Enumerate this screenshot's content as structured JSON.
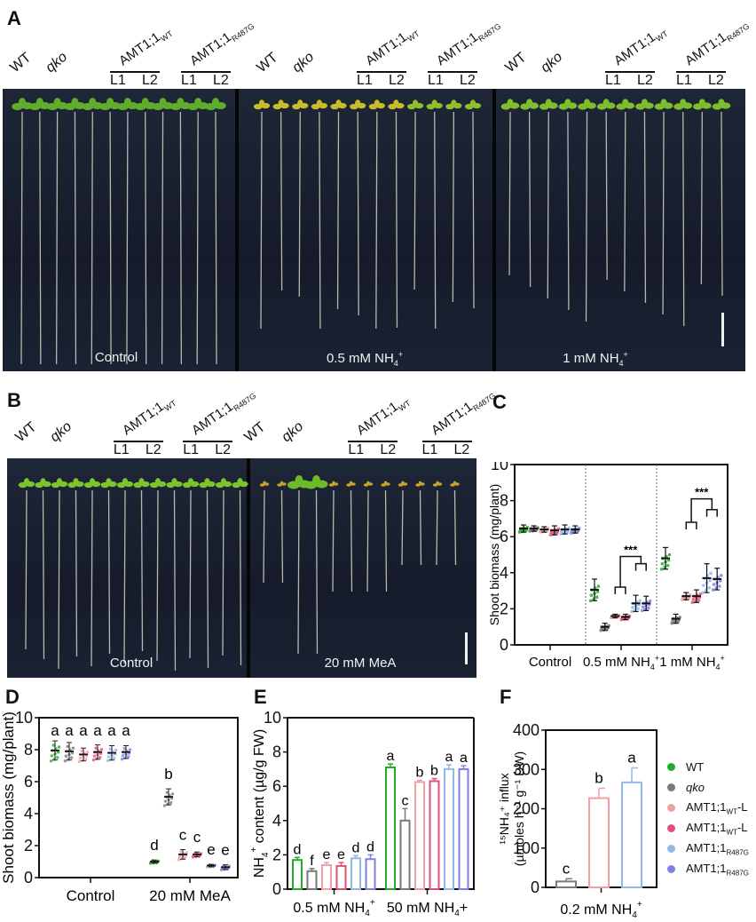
{
  "figure": {
    "panels": {
      "A": {
        "letter": "A",
        "conditions": [
          "Control",
          "0.5 mM NH",
          "1 mM NH"
        ],
        "nh4_sub": "4",
        "nh4_sup": "+"
      },
      "B": {
        "letter": "B",
        "conditions": [
          "Control",
          "20 mM MeA"
        ]
      },
      "C": {
        "letter": "C"
      },
      "D": {
        "letter": "D"
      },
      "E": {
        "letter": "E"
      },
      "F": {
        "letter": "F"
      }
    },
    "genotype_labels": {
      "wt": "WT",
      "qko": "qko",
      "amt_base": "AMT1;1",
      "amt_wt_sub": "WT",
      "amt_mut_sub": "R487G",
      "line1": "L1",
      "line2": "L2"
    },
    "colors": {
      "WT": "#1fae2b",
      "qko": "#7a7a7a",
      "AMT_WT_L1": "#f0a0a0",
      "AMT_WT_L2": "#e0507a",
      "AMT_R487G_L1": "#90b8ec",
      "AMT_R487G_L2": "#8080e0"
    },
    "legend": [
      {
        "label": "WT",
        "sub": "",
        "suffix": "",
        "italic": false,
        "color_key": "WT"
      },
      {
        "label": "qko",
        "sub": "",
        "suffix": "",
        "italic": true,
        "color_key": "qko"
      },
      {
        "label": "AMT1;1",
        "sub": "WT",
        "suffix": "-L",
        "italic": false,
        "color_key": "AMT_WT_L1"
      },
      {
        "label": "AMT1;1",
        "sub": "WT",
        "suffix": "-L",
        "italic": false,
        "color_key": "AMT_WT_L2"
      },
      {
        "label": "AMT1;1",
        "sub": "R487G",
        "suffix": "",
        "italic": false,
        "color_key": "AMT_R487G_L1"
      },
      {
        "label": "AMT1;1",
        "sub": "R487G",
        "suffix": "",
        "italic": false,
        "color_key": "AMT_R487G_L2"
      }
    ]
  },
  "chart_data": [
    {
      "id": "C",
      "type": "scatter",
      "title": "",
      "ylabel": "Shoot biomass (mg/plant)",
      "xlabel": "",
      "ylim": [
        0,
        10
      ],
      "yticks": [
        0,
        2,
        4,
        6,
        8,
        10
      ],
      "groups": [
        "Control",
        "0.5 mM NH4+",
        "1 mM NH4+"
      ],
      "series_order": [
        "WT",
        "qko",
        "AMT_WT_L1",
        "AMT_WT_L2",
        "AMT_R487G_L1",
        "AMT_R487G_L2"
      ],
      "means": [
        [
          6.45,
          6.45,
          6.4,
          6.35,
          6.4,
          6.4
        ],
        [
          3.05,
          1.0,
          1.6,
          1.55,
          2.3,
          2.3
        ],
        [
          4.8,
          1.45,
          2.7,
          2.7,
          3.7,
          3.65
        ]
      ],
      "sd": [
        [
          0.2,
          0.15,
          0.15,
          0.25,
          0.25,
          0.2
        ],
        [
          0.6,
          0.2,
          0.1,
          0.15,
          0.45,
          0.4
        ],
        [
          0.6,
          0.25,
          0.2,
          0.35,
          0.8,
          0.6
        ]
      ],
      "separators": true,
      "annotations": [
        {
          "group": 1,
          "text": "***"
        },
        {
          "group": 2,
          "text": "***"
        }
      ]
    },
    {
      "id": "D",
      "type": "scatter",
      "ylabel": "Shoot biomass (mg/plant)",
      "ylim": [
        0,
        10
      ],
      "yticks": [
        0,
        2,
        4,
        6,
        8,
        10
      ],
      "groups": [
        "Control",
        "20 mM MeA"
      ],
      "series_order": [
        "WT",
        "qko",
        "AMT_WT_L1",
        "AMT_WT_L2",
        "AMT_R487G_L1",
        "AMT_R487G_L2"
      ],
      "means": [
        [
          7.95,
          7.9,
          7.7,
          7.85,
          7.8,
          7.85
        ],
        [
          1.0,
          5.05,
          1.45,
          1.45,
          0.75,
          0.65
        ]
      ],
      "sd": [
        [
          0.6,
          0.55,
          0.4,
          0.45,
          0.45,
          0.4
        ],
        [
          0.1,
          0.5,
          0.3,
          0.15,
          0.08,
          0.15
        ]
      ],
      "letters": [
        [
          "a",
          "a",
          "a",
          "a",
          "a",
          "a"
        ],
        [
          "d",
          "b",
          "c",
          "c",
          "e",
          "e"
        ]
      ]
    },
    {
      "id": "E",
      "type": "bar",
      "ylabel": "NH4+ content (µg/g FW)",
      "ylim": [
        0,
        10
      ],
      "yticks": [
        0,
        2,
        4,
        6,
        8,
        10
      ],
      "groups": [
        "0.5 mM NH4+",
        "50 mM NH4+"
      ],
      "series_order": [
        "WT",
        "qko",
        "AMT_WT_L1",
        "AMT_WT_L2",
        "AMT_R487G_L1",
        "AMT_R487G_L2"
      ],
      "values": [
        [
          1.7,
          1.05,
          1.4,
          1.35,
          1.8,
          1.75
        ],
        [
          7.1,
          4.0,
          6.25,
          6.3,
          7.0,
          7.0
        ]
      ],
      "errors": [
        [
          0.15,
          0.15,
          0.15,
          0.2,
          0.15,
          0.25
        ],
        [
          0.2,
          0.7,
          0.1,
          0.15,
          0.25,
          0.2
        ]
      ],
      "letters": [
        [
          "d",
          "f",
          "e",
          "e",
          "d",
          "d"
        ],
        [
          "a",
          "c",
          "b",
          "b",
          "a",
          "a"
        ]
      ]
    },
    {
      "id": "F",
      "type": "bar",
      "ylabel": "15NH4+ influx (µmoles h-1 g-1 DW)",
      "ylim": [
        0,
        400
      ],
      "yticks": [
        0,
        100,
        200,
        300,
        400
      ],
      "groups": [
        "0.2 mM NH4+"
      ],
      "categories": [
        "qko",
        "AMT_WT_L1",
        "AMT_R487G_L1"
      ],
      "values": [
        15,
        227,
        267
      ],
      "errors": [
        7,
        25,
        37
      ],
      "letters": [
        "c",
        "b",
        "a"
      ]
    }
  ]
}
